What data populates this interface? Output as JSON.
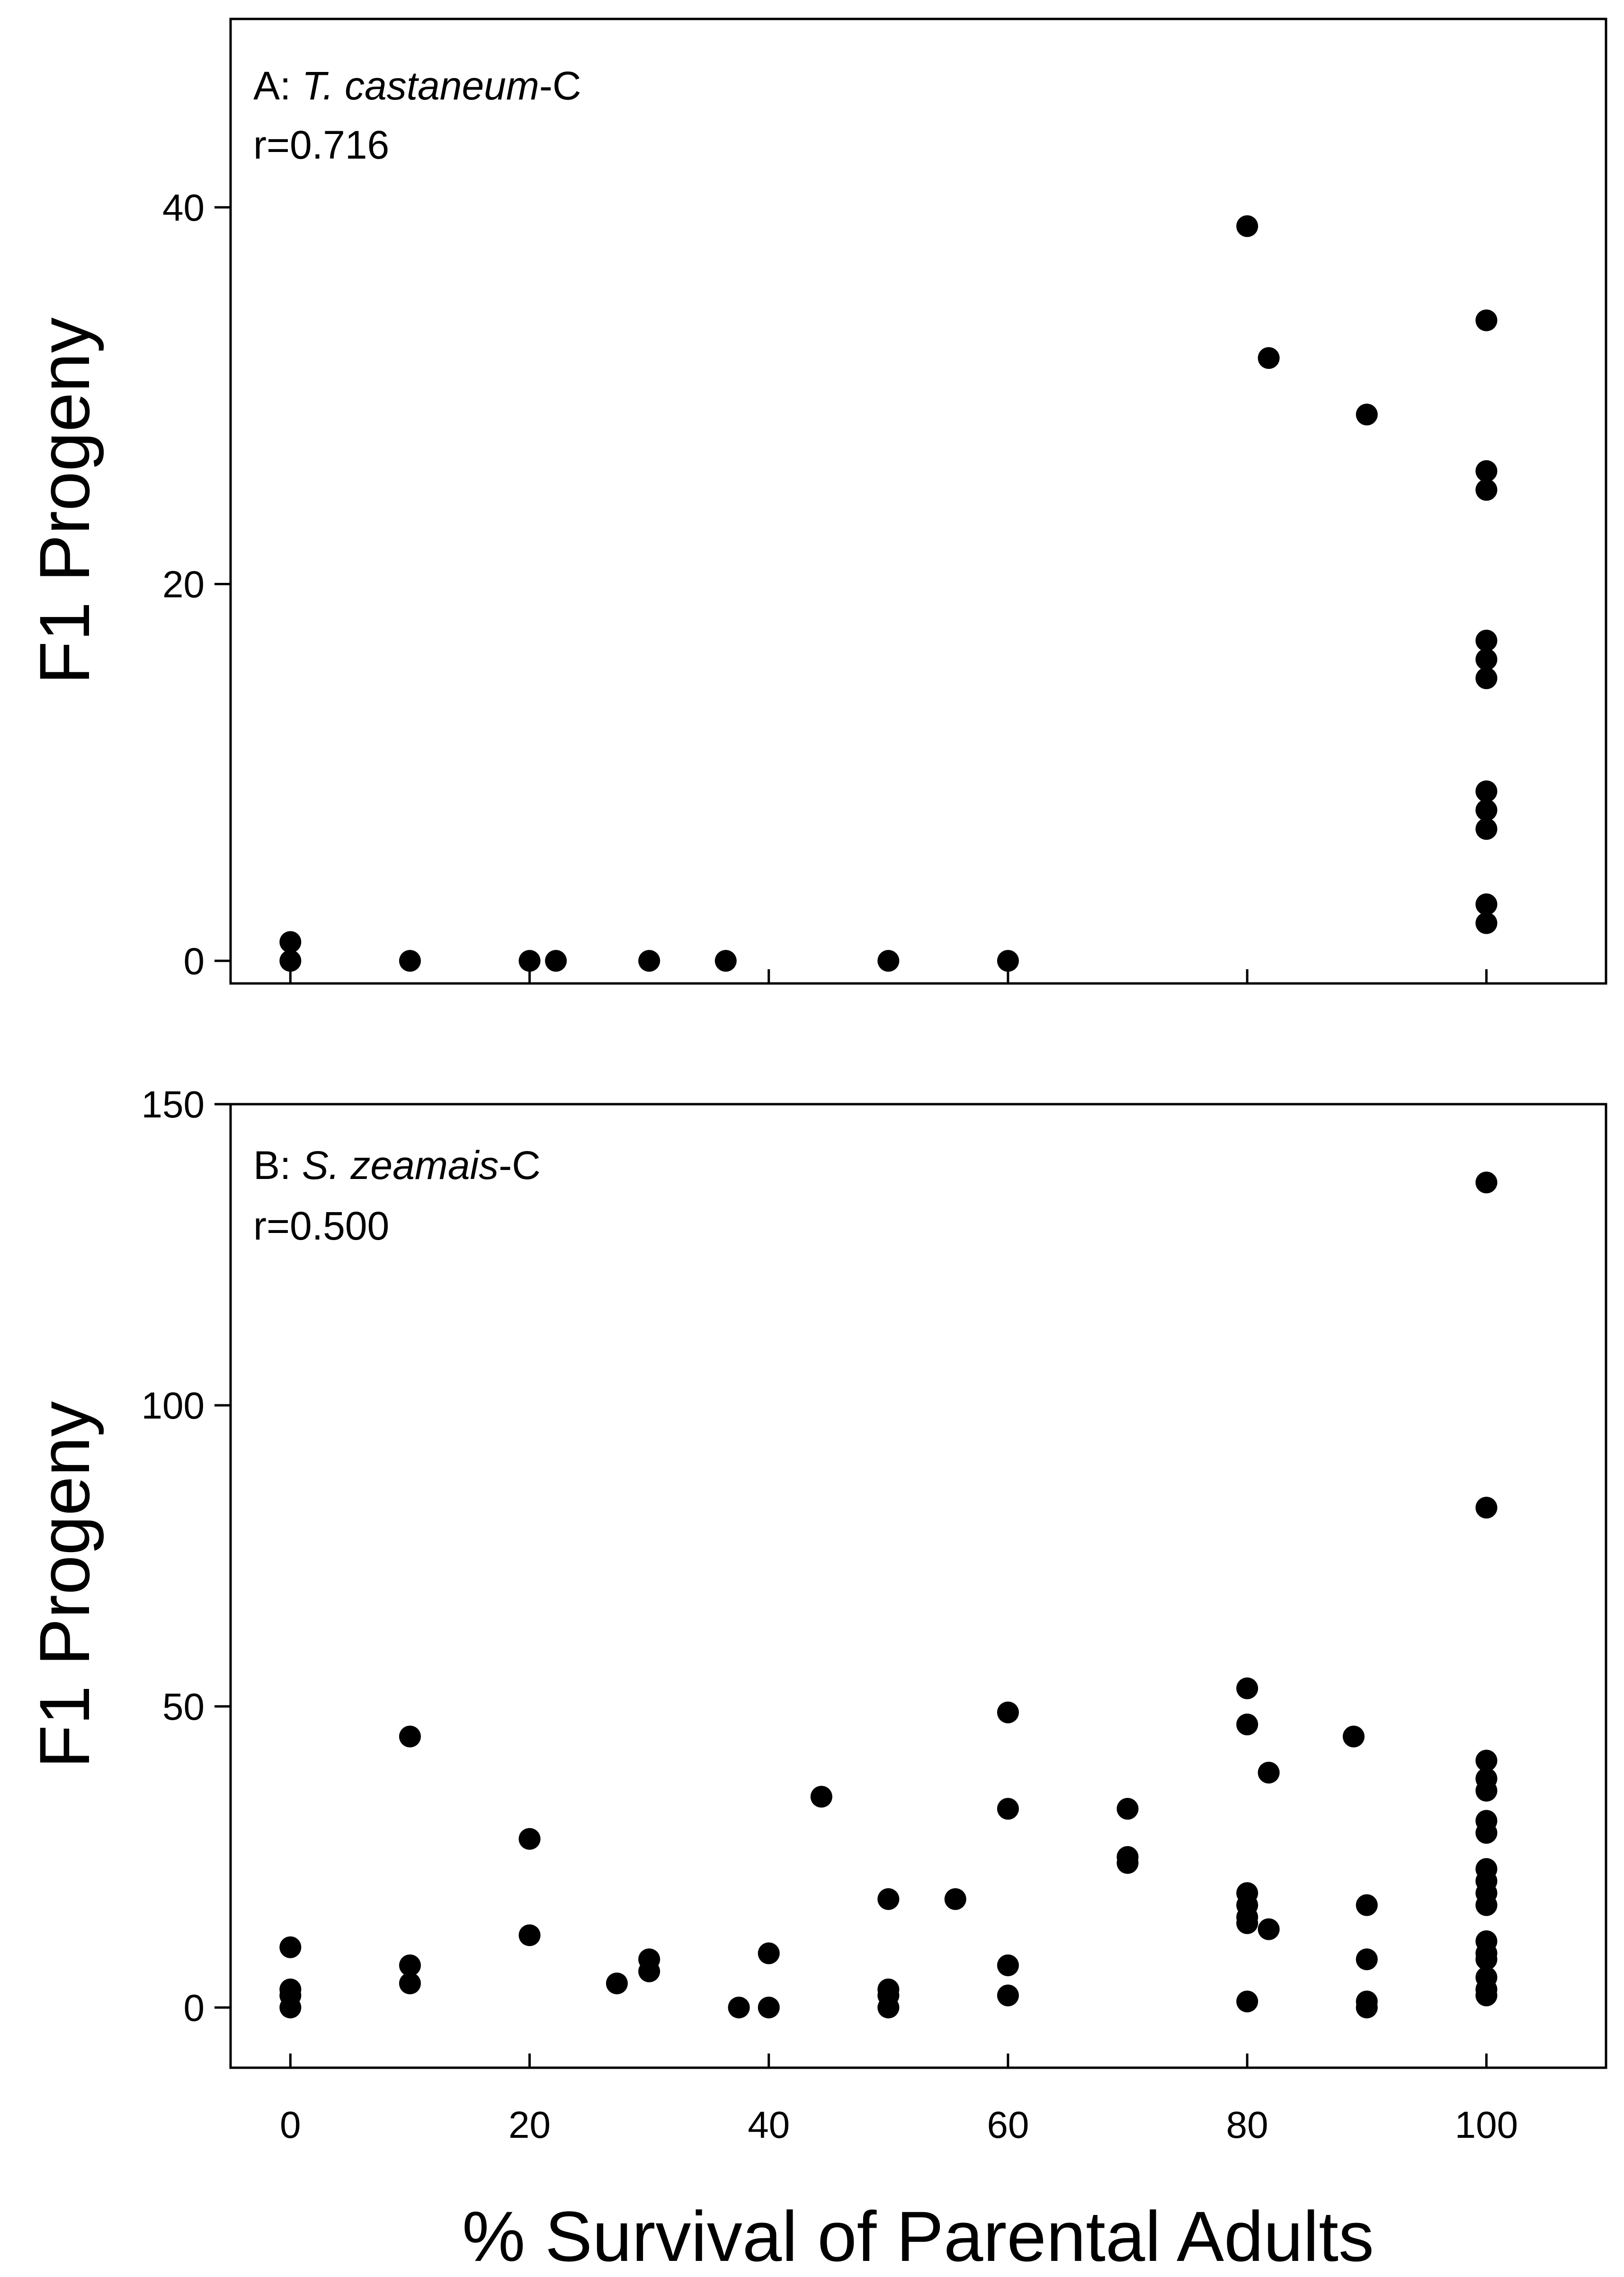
{
  "chart_data": [
    {
      "type": "scatter",
      "panel_prefix": "A: ",
      "species": "T. castaneum",
      "panel_suffix": "-C",
      "r_label": "r=0.716",
      "xlabel": "% Survival of Parental Adults",
      "ylabel": "F1 Progeny",
      "xlim": [
        -5,
        110
      ],
      "ylim": [
        -1.2,
        50
      ],
      "xticks": [
        0,
        20,
        40,
        60,
        80,
        100
      ],
      "xtick_labels_shown": false,
      "yticks": [
        0,
        20,
        40
      ],
      "ytick_labels": [
        "0",
        "20",
        "40"
      ],
      "points": [
        {
          "x": 0,
          "y": 1
        },
        {
          "x": 0,
          "y": 0
        },
        {
          "x": 10,
          "y": 0
        },
        {
          "x": 20,
          "y": 0
        },
        {
          "x": 22.2,
          "y": 0
        },
        {
          "x": 30,
          "y": 0
        },
        {
          "x": 36.4,
          "y": 0
        },
        {
          "x": 50,
          "y": 0
        },
        {
          "x": 60,
          "y": 0
        },
        {
          "x": 80,
          "y": 39
        },
        {
          "x": 81.8,
          "y": 32
        },
        {
          "x": 90,
          "y": 29
        },
        {
          "x": 100,
          "y": 34
        },
        {
          "x": 100,
          "y": 26
        },
        {
          "x": 100,
          "y": 25
        },
        {
          "x": 100,
          "y": 17
        },
        {
          "x": 100,
          "y": 16
        },
        {
          "x": 100,
          "y": 15
        },
        {
          "x": 100,
          "y": 9
        },
        {
          "x": 100,
          "y": 8
        },
        {
          "x": 100,
          "y": 7
        },
        {
          "x": 100,
          "y": 3
        },
        {
          "x": 100,
          "y": 2
        }
      ]
    },
    {
      "type": "scatter",
      "panel_prefix": "B: ",
      "species": "S. zeamais",
      "panel_suffix": "-C",
      "r_label": "r=0.500",
      "xlabel": "% Survival of Parental Adults",
      "ylabel": "F1 Progeny",
      "xlim": [
        -5,
        110
      ],
      "ylim": [
        -10,
        150
      ],
      "xticks": [
        0,
        20,
        40,
        60,
        80,
        100
      ],
      "xtick_labels": [
        "0",
        "20",
        "40",
        "60",
        "80",
        "100"
      ],
      "xtick_labels_shown": true,
      "yticks": [
        0,
        50,
        100,
        150
      ],
      "ytick_labels": [
        "0",
        "50",
        "100",
        "150"
      ],
      "points": [
        {
          "x": 0,
          "y": 10
        },
        {
          "x": 0,
          "y": 3
        },
        {
          "x": 0,
          "y": 2
        },
        {
          "x": 0,
          "y": 0
        },
        {
          "x": 10,
          "y": 45
        },
        {
          "x": 10,
          "y": 7
        },
        {
          "x": 10,
          "y": 4
        },
        {
          "x": 20,
          "y": 28
        },
        {
          "x": 20,
          "y": 12
        },
        {
          "x": 27.3,
          "y": 4
        },
        {
          "x": 30,
          "y": 8
        },
        {
          "x": 30,
          "y": 6
        },
        {
          "x": 37.5,
          "y": 0
        },
        {
          "x": 40,
          "y": 9
        },
        {
          "x": 40,
          "y": 0
        },
        {
          "x": 44.4,
          "y": 35
        },
        {
          "x": 50,
          "y": 18
        },
        {
          "x": 50,
          "y": 3
        },
        {
          "x": 50,
          "y": 2
        },
        {
          "x": 50,
          "y": 0
        },
        {
          "x": 55.6,
          "y": 18
        },
        {
          "x": 60,
          "y": 49
        },
        {
          "x": 60,
          "y": 33
        },
        {
          "x": 60,
          "y": 7
        },
        {
          "x": 60,
          "y": 2
        },
        {
          "x": 70,
          "y": 33
        },
        {
          "x": 70,
          "y": 25
        },
        {
          "x": 70,
          "y": 24
        },
        {
          "x": 80,
          "y": 53
        },
        {
          "x": 80,
          "y": 47
        },
        {
          "x": 80,
          "y": 19
        },
        {
          "x": 80,
          "y": 17
        },
        {
          "x": 80,
          "y": 15
        },
        {
          "x": 80,
          "y": 14
        },
        {
          "x": 80,
          "y": 1
        },
        {
          "x": 81.8,
          "y": 39
        },
        {
          "x": 81.8,
          "y": 13
        },
        {
          "x": 88.9,
          "y": 45
        },
        {
          "x": 90,
          "y": 17
        },
        {
          "x": 90,
          "y": 8
        },
        {
          "x": 90,
          "y": 1
        },
        {
          "x": 90,
          "y": 0
        },
        {
          "x": 100,
          "y": 137
        },
        {
          "x": 100,
          "y": 83
        },
        {
          "x": 100,
          "y": 41
        },
        {
          "x": 100,
          "y": 38
        },
        {
          "x": 100,
          "y": 36
        },
        {
          "x": 100,
          "y": 31
        },
        {
          "x": 100,
          "y": 29
        },
        {
          "x": 100,
          "y": 23
        },
        {
          "x": 100,
          "y": 21
        },
        {
          "x": 100,
          "y": 19
        },
        {
          "x": 100,
          "y": 17
        },
        {
          "x": 100,
          "y": 11
        },
        {
          "x": 100,
          "y": 9
        },
        {
          "x": 100,
          "y": 8
        },
        {
          "x": 100,
          "y": 5
        },
        {
          "x": 100,
          "y": 3
        },
        {
          "x": 100,
          "y": 2
        }
      ]
    }
  ]
}
